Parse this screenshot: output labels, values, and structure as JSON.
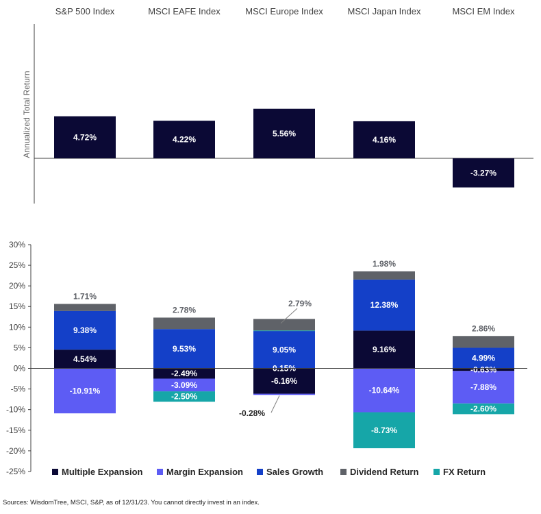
{
  "colors": {
    "navy": "#0b0935",
    "multiple_expansion": "#0b0935",
    "margin_expansion": "#5d5cf4",
    "sales_growth": "#1440c8",
    "dividend_return": "#5f6268",
    "fx_return": "#16a6a8",
    "axis": "#404040"
  },
  "chart_data": [
    {
      "type": "bar",
      "categories": [
        "S&P 500 Index",
        "MSCI EAFE Index",
        "MSCI Europe Index",
        "MSCI Japan Index",
        "MSCI EM Index"
      ],
      "ylabel": "Annualized Total Return",
      "values": [
        4.72,
        4.22,
        5.56,
        4.16,
        -3.27
      ],
      "labels": [
        "4.72%",
        "4.22%",
        "5.56%",
        "4.16%",
        "-3.27%"
      ]
    },
    {
      "type": "bar",
      "stacked": true,
      "categories": [
        "S&P 500 Index",
        "MSCI EAFE Index",
        "MSCI Europe Index",
        "MSCI Japan Index",
        "MSCI EM Index"
      ],
      "ylim": [
        -25,
        30
      ],
      "yticks": [
        "30%",
        "25%",
        "20%",
        "15%",
        "10%",
        "5%",
        "0%",
        "-5%",
        "-10%",
        "-15%",
        "-20%",
        "-25%"
      ],
      "legend_position": "bottom",
      "series": [
        {
          "name": "Multiple Expansion",
          "values": [
            4.54,
            -2.49,
            -6.16,
            9.16,
            -0.63
          ],
          "labels": [
            "4.54%",
            "-2.49%",
            "-6.16%",
            "9.16%",
            "-0.63%"
          ]
        },
        {
          "name": "Margin Expansion",
          "values": [
            -10.91,
            -3.09,
            -0.28,
            -10.64,
            -7.88
          ],
          "labels": [
            "-10.91%",
            "-3.09%",
            "-0.28%",
            "-10.64%",
            "-7.88%"
          ]
        },
        {
          "name": "Sales Growth",
          "values": [
            9.38,
            9.53,
            9.05,
            12.38,
            4.99
          ],
          "labels": [
            "9.38%",
            "9.53%",
            "9.05%",
            "12.38%",
            "4.99%"
          ]
        },
        {
          "name": "Dividend Return",
          "values": [
            1.71,
            2.78,
            2.79,
            1.98,
            2.86
          ],
          "labels": [
            "1.71%",
            "2.78%",
            "2.79%",
            "1.98%",
            "2.86%"
          ]
        },
        {
          "name": "FX Return",
          "values": [
            0,
            -2.5,
            0.15,
            -8.73,
            -2.6
          ],
          "labels": [
            "",
            "-2.50%",
            "0.15%",
            "-8.73%",
            "-2.60%"
          ]
        }
      ]
    }
  ],
  "footer": {
    "source": "Sources: WisdomTree, MSCI, S&P, as of 12/31/23. You cannot directly invest in an index."
  }
}
